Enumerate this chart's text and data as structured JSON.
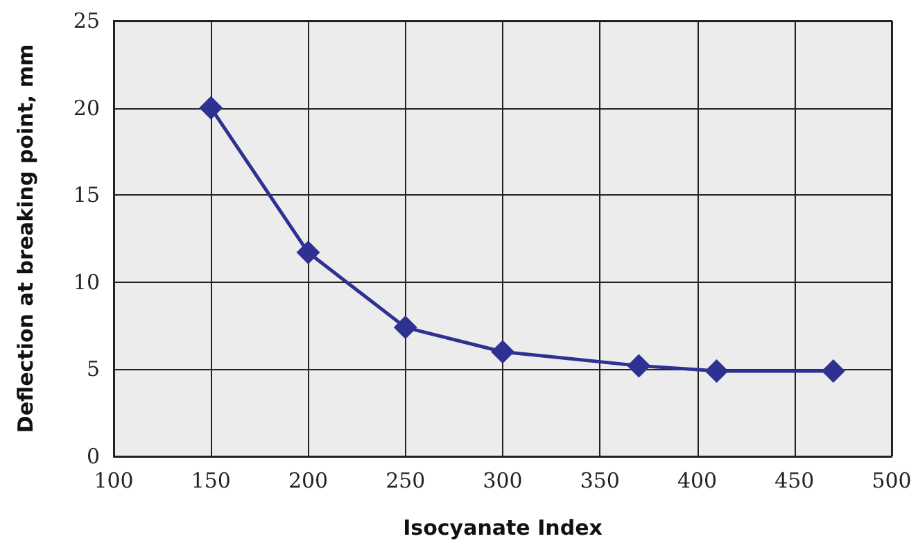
{
  "chart_data": {
    "type": "line",
    "xlabel": "Isocyanate Index",
    "ylabel": "Deflection at breaking point, mm",
    "x": [
      150,
      200,
      250,
      300,
      370,
      410,
      470
    ],
    "series": [
      {
        "color": "#2e3192",
        "values": [
          20,
          11.7,
          7.4,
          6.0,
          5.2,
          4.9,
          4.9
        ]
      }
    ],
    "xlim": [
      100,
      500
    ],
    "xticks": [
      100,
      150,
      200,
      250,
      300,
      350,
      400,
      450,
      500
    ],
    "ylim": [
      0,
      25
    ],
    "yticks": [
      0,
      5,
      10,
      15,
      20,
      25
    ],
    "grid": true,
    "marker": "diamond",
    "line_style": "solid"
  }
}
